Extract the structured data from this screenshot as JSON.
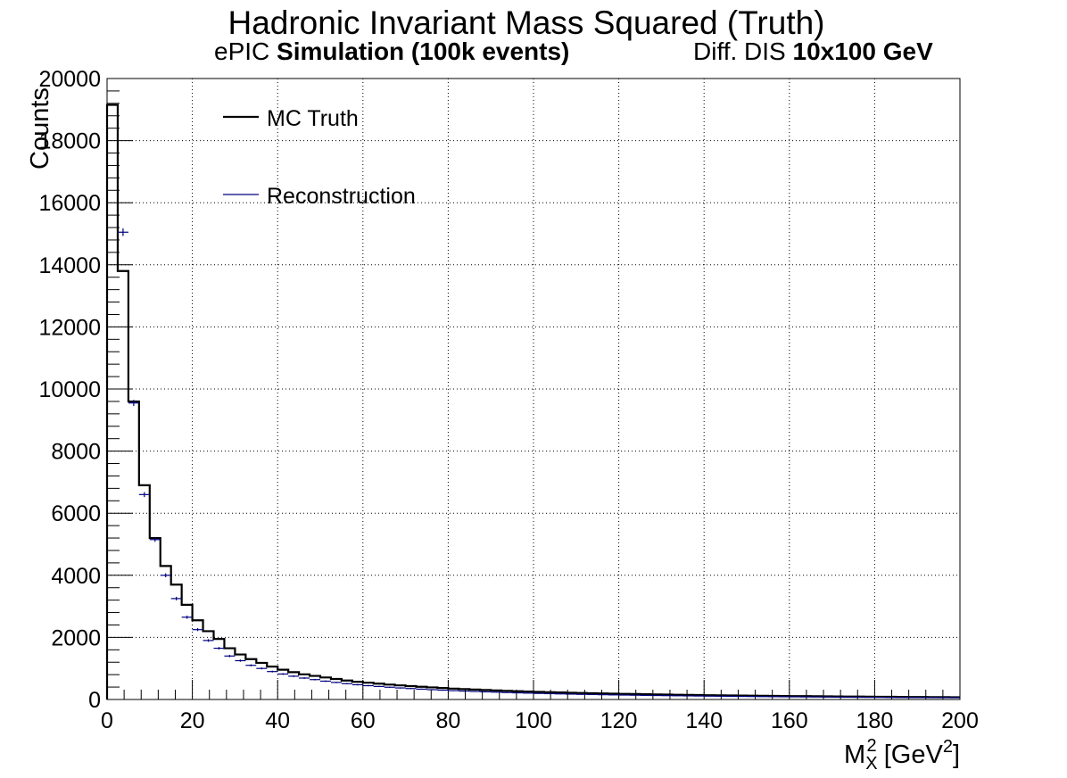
{
  "header": {
    "title": "Hadronic Invariant Mass Squared (Truth)",
    "subtitle_left_plain": "ePIC ",
    "subtitle_left_bold": "Simulation (100k events)",
    "subtitle_right_plain": "Diff. DIS ",
    "subtitle_right_bold": "10x100 GeV"
  },
  "chart_data": {
    "type": "histogram",
    "title": "Hadronic Invariant Mass Squared (Truth)",
    "xlabel_parts": [
      "M",
      "X",
      "2",
      " [GeV",
      "2",
      "]"
    ],
    "ylabel": "Counts",
    "xlim": [
      0,
      200
    ],
    "ylim": [
      0,
      20000
    ],
    "grid": true,
    "legend_position": "top-left",
    "x_ticks": [
      0,
      20,
      40,
      60,
      80,
      100,
      120,
      140,
      160,
      180,
      200
    ],
    "x_tick_labels": [
      "0",
      "20",
      "40",
      "60",
      "80",
      "100",
      "120",
      "140",
      "160",
      "180",
      "200"
    ],
    "y_ticks": [
      0,
      2000,
      4000,
      6000,
      8000,
      10000,
      12000,
      14000,
      16000,
      18000,
      20000
    ],
    "y_tick_labels": [
      "0",
      "2000",
      "4000",
      "6000",
      "8000",
      "10000",
      "12000",
      "14000",
      "16000",
      "18000",
      "20000"
    ],
    "bin_width": 2.5,
    "series": [
      {
        "name": "MC Truth",
        "style": "step",
        "color": "#000000",
        "values": [
          19150,
          13800,
          9600,
          6900,
          5200,
          4300,
          3700,
          3050,
          2550,
          2200,
          1950,
          1650,
          1450,
          1300,
          1180,
          1060,
          960,
          880,
          810,
          760,
          710,
          660,
          610,
          570,
          540,
          510,
          480,
          455,
          430,
          410,
          390,
          370,
          350,
          335,
          320,
          305,
          290,
          278,
          266,
          255,
          245,
          235,
          226,
          218,
          210,
          202,
          195,
          188,
          181,
          175,
          169,
          163,
          158,
          153,
          148,
          143,
          139,
          135,
          131,
          127,
          123,
          120,
          116,
          113,
          110,
          107,
          104,
          101,
          98,
          95,
          93,
          90,
          88,
          86,
          83,
          81,
          79,
          77,
          75,
          73
        ]
      },
      {
        "name": "Reconstruction",
        "style": "errorbar",
        "color": "#00007f",
        "values": [
          0,
          15050,
          9550,
          6600,
          5150,
          4000,
          3250,
          2650,
          2250,
          1900,
          1650,
          1400,
          1250,
          1100,
          1000,
          900,
          820,
          750,
          690,
          640,
          590,
          550,
          510,
          475,
          445,
          420,
          395,
          372,
          352,
          333,
          316,
          300,
          285,
          271,
          258,
          246,
          235,
          224,
          214,
          205,
          196,
          188,
          180,
          173,
          166,
          160,
          154,
          148,
          143,
          138,
          133,
          128,
          124,
          120,
          116,
          112,
          108,
          105,
          102,
          99,
          96,
          93,
          90,
          87,
          85,
          82,
          80,
          78,
          76,
          74,
          72,
          70,
          68,
          66,
          64,
          62,
          61,
          59,
          58,
          56
        ]
      }
    ]
  }
}
